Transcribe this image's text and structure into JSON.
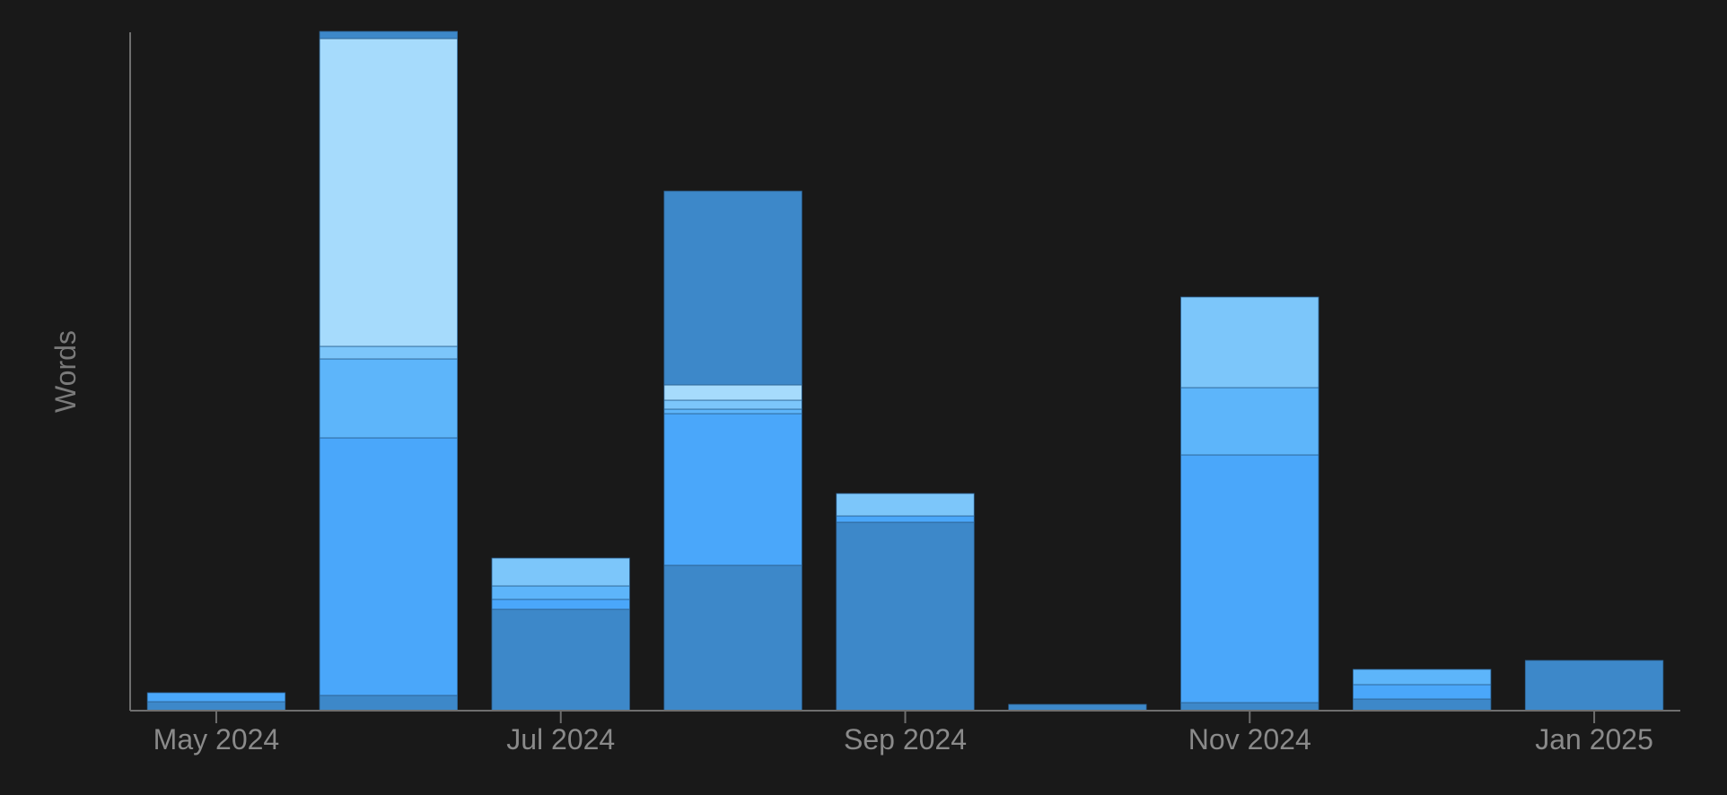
{
  "chart_data": {
    "type": "bar",
    "stacked": true,
    "title": "",
    "xlabel": "",
    "ylabel": "Words",
    "categories": [
      "May 2024",
      "Jun 2024",
      "Jul 2024",
      "Aug 2024",
      "Sep 2024",
      "Oct 2024",
      "Nov 2024",
      "Dec 2024",
      "Jan 2025"
    ],
    "x_tick_labels": [
      {
        "label": "May 2024",
        "category": "May 2024"
      },
      {
        "label": "Jul 2024",
        "category": "Jul 2024"
      },
      {
        "label": "Sep 2024",
        "category": "Sep 2024"
      },
      {
        "label": "Nov 2024",
        "category": "Nov 2024"
      },
      {
        "label": "Jan 2025",
        "category": "Jan 2025"
      }
    ],
    "ylim": [
      0,
      756
    ],
    "y_ticks_shown": false,
    "grid": false,
    "legend": "none",
    "series": [
      {
        "color": "#3D88C9",
        "values": [
          10,
          17,
          113,
          162,
          210,
          7,
          9,
          13,
          56
        ]
      },
      {
        "color": "#4AA7FA",
        "values": [
          10,
          287,
          11,
          169,
          7,
          0,
          276,
          16,
          0
        ]
      },
      {
        "color": "#5DB5FA",
        "values": [
          0,
          88,
          15,
          5,
          0,
          0,
          75,
          17,
          0
        ]
      },
      {
        "color": "#7CC6FA",
        "values": [
          0,
          14,
          31,
          10,
          25,
          0,
          101,
          0,
          0
        ]
      },
      {
        "color": "#A6DBFC",
        "values": [
          0,
          343,
          0,
          17,
          0,
          0,
          0,
          0,
          0
        ]
      },
      {
        "color": "#3D88C9",
        "values": [
          0,
          8,
          0,
          216,
          0,
          0,
          0,
          0,
          0
        ]
      }
    ],
    "colors": {
      "background": "#191919",
      "axis": "#6E6E6E",
      "tick_label": "#8A8A8A",
      "axis_label": "#7A7A7A",
      "segment_border": "#2B5F8E"
    }
  }
}
